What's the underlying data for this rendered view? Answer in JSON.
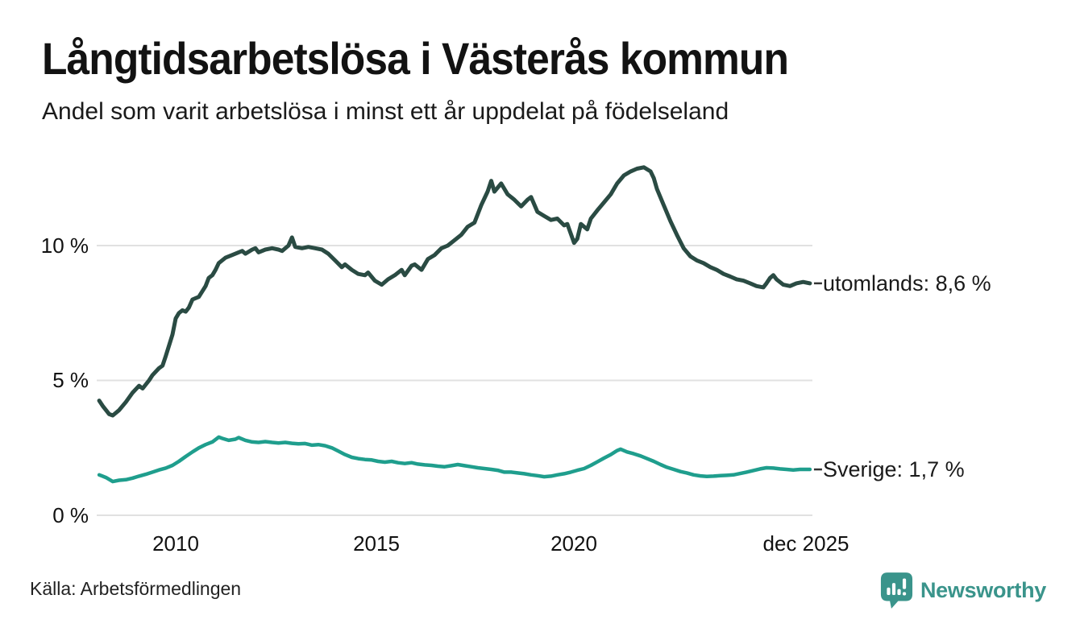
{
  "header": {
    "title": "Långtidsarbetslösa i Västerås kommun",
    "subtitle": "Andel som varit arbetslösa i minst ett år uppdelat på födelseland"
  },
  "footer": {
    "source": "Källa: Arbetsförmedlingen",
    "brand": "Newsworthy"
  },
  "colors": {
    "series_utomlands": "#2a4b43",
    "series_sverige": "#1f9e8d",
    "gridline": "#e1e1e1",
    "label_connector": "#333333",
    "brand_teal": "#3a948b",
    "text": "#111111",
    "background": "#ffffff"
  },
  "chart_data": {
    "type": "line",
    "title": "Långtidsarbetslösa i Västerås kommun",
    "subtitle": "Andel som varit arbetslösa i minst ett år uppdelat på födelseland",
    "unit": "%",
    "grid": "horizontal-only",
    "legend_position": "end-of-line-labels-right",
    "xlim": [
      2008.0,
      2025.95
    ],
    "ylim": [
      0,
      13.5
    ],
    "x_ticks": [
      {
        "label": "2010",
        "year": 2010
      },
      {
        "label": "2015",
        "year": 2015
      },
      {
        "label": "2020",
        "year": 2020
      },
      {
        "label": "dec 2025",
        "year": 2025.92
      }
    ],
    "y_ticks": [
      {
        "label": "0 %",
        "value": 0
      },
      {
        "label": "5 %",
        "value": 5
      },
      {
        "label": "10 %",
        "value": 10
      }
    ],
    "series": [
      {
        "name": "utomlands",
        "label": "utomlands: 8,6 %",
        "last_value": 8.6,
        "color": "#2a4b43",
        "stroke_width": 5,
        "points": [
          [
            2008.08,
            4.25
          ],
          [
            2008.17,
            4.05
          ],
          [
            2008.33,
            3.75
          ],
          [
            2008.42,
            3.7
          ],
          [
            2008.58,
            3.9
          ],
          [
            2008.75,
            4.2
          ],
          [
            2008.92,
            4.55
          ],
          [
            2009.08,
            4.8
          ],
          [
            2009.17,
            4.7
          ],
          [
            2009.33,
            5.0
          ],
          [
            2009.42,
            5.2
          ],
          [
            2009.58,
            5.45
          ],
          [
            2009.67,
            5.55
          ],
          [
            2009.75,
            5.9
          ],
          [
            2009.92,
            6.7
          ],
          [
            2010.0,
            7.3
          ],
          [
            2010.08,
            7.5
          ],
          [
            2010.17,
            7.6
          ],
          [
            2010.25,
            7.55
          ],
          [
            2010.33,
            7.7
          ],
          [
            2010.42,
            8.0
          ],
          [
            2010.58,
            8.1
          ],
          [
            2010.75,
            8.5
          ],
          [
            2010.83,
            8.8
          ],
          [
            2010.92,
            8.9
          ],
          [
            2011.0,
            9.1
          ],
          [
            2011.08,
            9.35
          ],
          [
            2011.25,
            9.55
          ],
          [
            2011.42,
            9.65
          ],
          [
            2011.58,
            9.75
          ],
          [
            2011.67,
            9.8
          ],
          [
            2011.75,
            9.7
          ],
          [
            2011.92,
            9.85
          ],
          [
            2012.0,
            9.9
          ],
          [
            2012.08,
            9.75
          ],
          [
            2012.25,
            9.85
          ],
          [
            2012.42,
            9.9
          ],
          [
            2012.58,
            9.85
          ],
          [
            2012.67,
            9.8
          ],
          [
            2012.83,
            10.0
          ],
          [
            2012.92,
            10.3
          ],
          [
            2013.0,
            9.95
          ],
          [
            2013.17,
            9.9
          ],
          [
            2013.33,
            9.95
          ],
          [
            2013.5,
            9.9
          ],
          [
            2013.67,
            9.85
          ],
          [
            2013.83,
            9.7
          ],
          [
            2014.0,
            9.45
          ],
          [
            2014.17,
            9.2
          ],
          [
            2014.25,
            9.3
          ],
          [
            2014.42,
            9.1
          ],
          [
            2014.58,
            8.95
          ],
          [
            2014.75,
            8.9
          ],
          [
            2014.83,
            9.0
          ],
          [
            2015.0,
            8.7
          ],
          [
            2015.17,
            8.55
          ],
          [
            2015.33,
            8.75
          ],
          [
            2015.5,
            8.9
          ],
          [
            2015.67,
            9.1
          ],
          [
            2015.75,
            8.9
          ],
          [
            2015.92,
            9.25
          ],
          [
            2016.0,
            9.3
          ],
          [
            2016.17,
            9.1
          ],
          [
            2016.33,
            9.5
          ],
          [
            2016.5,
            9.65
          ],
          [
            2016.67,
            9.9
          ],
          [
            2016.83,
            10.0
          ],
          [
            2017.0,
            10.2
          ],
          [
            2017.17,
            10.4
          ],
          [
            2017.33,
            10.7
          ],
          [
            2017.5,
            10.85
          ],
          [
            2017.67,
            11.5
          ],
          [
            2017.83,
            12.0
          ],
          [
            2017.92,
            12.4
          ],
          [
            2018.0,
            12.0
          ],
          [
            2018.17,
            12.3
          ],
          [
            2018.33,
            11.9
          ],
          [
            2018.5,
            11.7
          ],
          [
            2018.67,
            11.45
          ],
          [
            2018.83,
            11.7
          ],
          [
            2018.92,
            11.8
          ],
          [
            2019.08,
            11.25
          ],
          [
            2019.25,
            11.1
          ],
          [
            2019.42,
            10.95
          ],
          [
            2019.58,
            11.0
          ],
          [
            2019.75,
            10.75
          ],
          [
            2019.83,
            10.8
          ],
          [
            2020.0,
            10.1
          ],
          [
            2020.08,
            10.25
          ],
          [
            2020.17,
            10.8
          ],
          [
            2020.33,
            10.6
          ],
          [
            2020.42,
            11.0
          ],
          [
            2020.58,
            11.3
          ],
          [
            2020.75,
            11.6
          ],
          [
            2020.92,
            11.9
          ],
          [
            2021.08,
            12.3
          ],
          [
            2021.25,
            12.6
          ],
          [
            2021.42,
            12.75
          ],
          [
            2021.58,
            12.85
          ],
          [
            2021.75,
            12.9
          ],
          [
            2021.92,
            12.75
          ],
          [
            2022.0,
            12.5
          ],
          [
            2022.08,
            12.1
          ],
          [
            2022.25,
            11.5
          ],
          [
            2022.42,
            10.9
          ],
          [
            2022.58,
            10.4
          ],
          [
            2022.75,
            9.9
          ],
          [
            2022.92,
            9.6
          ],
          [
            2023.08,
            9.45
          ],
          [
            2023.25,
            9.35
          ],
          [
            2023.42,
            9.2
          ],
          [
            2023.58,
            9.1
          ],
          [
            2023.75,
            8.95
          ],
          [
            2023.92,
            8.85
          ],
          [
            2024.08,
            8.75
          ],
          [
            2024.25,
            8.7
          ],
          [
            2024.42,
            8.6
          ],
          [
            2024.58,
            8.5
          ],
          [
            2024.75,
            8.45
          ],
          [
            2024.83,
            8.6
          ],
          [
            2024.92,
            8.8
          ],
          [
            2025.0,
            8.9
          ],
          [
            2025.08,
            8.75
          ],
          [
            2025.25,
            8.55
          ],
          [
            2025.42,
            8.5
          ],
          [
            2025.58,
            8.6
          ],
          [
            2025.75,
            8.65
          ],
          [
            2025.92,
            8.6
          ]
        ]
      },
      {
        "name": "Sverige",
        "label": "Sverige: 1,7 %",
        "last_value": 1.7,
        "color": "#1f9e8d",
        "stroke_width": 4.5,
        "points": [
          [
            2008.08,
            1.5
          ],
          [
            2008.25,
            1.4
          ],
          [
            2008.42,
            1.25
          ],
          [
            2008.58,
            1.3
          ],
          [
            2008.75,
            1.32
          ],
          [
            2008.92,
            1.38
          ],
          [
            2009.08,
            1.45
          ],
          [
            2009.25,
            1.52
          ],
          [
            2009.42,
            1.6
          ],
          [
            2009.58,
            1.68
          ],
          [
            2009.75,
            1.75
          ],
          [
            2009.92,
            1.85
          ],
          [
            2010.08,
            2.0
          ],
          [
            2010.25,
            2.18
          ],
          [
            2010.42,
            2.35
          ],
          [
            2010.58,
            2.5
          ],
          [
            2010.75,
            2.62
          ],
          [
            2010.92,
            2.72
          ],
          [
            2011.08,
            2.9
          ],
          [
            2011.17,
            2.85
          ],
          [
            2011.33,
            2.78
          ],
          [
            2011.5,
            2.82
          ],
          [
            2011.58,
            2.88
          ],
          [
            2011.75,
            2.78
          ],
          [
            2011.92,
            2.72
          ],
          [
            2012.08,
            2.7
          ],
          [
            2012.25,
            2.73
          ],
          [
            2012.42,
            2.7
          ],
          [
            2012.58,
            2.68
          ],
          [
            2012.75,
            2.7
          ],
          [
            2012.92,
            2.67
          ],
          [
            2013.08,
            2.65
          ],
          [
            2013.25,
            2.66
          ],
          [
            2013.42,
            2.6
          ],
          [
            2013.58,
            2.62
          ],
          [
            2013.75,
            2.58
          ],
          [
            2013.92,
            2.5
          ],
          [
            2014.08,
            2.38
          ],
          [
            2014.25,
            2.25
          ],
          [
            2014.42,
            2.15
          ],
          [
            2014.58,
            2.1
          ],
          [
            2014.75,
            2.07
          ],
          [
            2014.92,
            2.05
          ],
          [
            2015.08,
            2.0
          ],
          [
            2015.25,
            1.97
          ],
          [
            2015.42,
            2.0
          ],
          [
            2015.58,
            1.95
          ],
          [
            2015.75,
            1.92
          ],
          [
            2015.92,
            1.95
          ],
          [
            2016.08,
            1.9
          ],
          [
            2016.25,
            1.87
          ],
          [
            2016.42,
            1.85
          ],
          [
            2016.58,
            1.82
          ],
          [
            2016.75,
            1.8
          ],
          [
            2016.92,
            1.84
          ],
          [
            2017.08,
            1.88
          ],
          [
            2017.25,
            1.84
          ],
          [
            2017.42,
            1.8
          ],
          [
            2017.58,
            1.76
          ],
          [
            2017.75,
            1.73
          ],
          [
            2017.92,
            1.7
          ],
          [
            2018.08,
            1.67
          ],
          [
            2018.25,
            1.6
          ],
          [
            2018.42,
            1.6
          ],
          [
            2018.58,
            1.57
          ],
          [
            2018.75,
            1.54
          ],
          [
            2018.92,
            1.5
          ],
          [
            2019.08,
            1.47
          ],
          [
            2019.25,
            1.43
          ],
          [
            2019.42,
            1.45
          ],
          [
            2019.58,
            1.5
          ],
          [
            2019.75,
            1.54
          ],
          [
            2019.92,
            1.6
          ],
          [
            2020.08,
            1.67
          ],
          [
            2020.25,
            1.73
          ],
          [
            2020.42,
            1.85
          ],
          [
            2020.58,
            1.98
          ],
          [
            2020.75,
            2.12
          ],
          [
            2020.92,
            2.25
          ],
          [
            2021.08,
            2.4
          ],
          [
            2021.17,
            2.45
          ],
          [
            2021.33,
            2.35
          ],
          [
            2021.5,
            2.28
          ],
          [
            2021.67,
            2.2
          ],
          [
            2021.83,
            2.1
          ],
          [
            2022.0,
            2.0
          ],
          [
            2022.17,
            1.88
          ],
          [
            2022.33,
            1.78
          ],
          [
            2022.5,
            1.7
          ],
          [
            2022.67,
            1.62
          ],
          [
            2022.83,
            1.57
          ],
          [
            2023.0,
            1.5
          ],
          [
            2023.17,
            1.46
          ],
          [
            2023.33,
            1.44
          ],
          [
            2023.5,
            1.45
          ],
          [
            2023.67,
            1.47
          ],
          [
            2023.83,
            1.48
          ],
          [
            2024.0,
            1.5
          ],
          [
            2024.17,
            1.55
          ],
          [
            2024.33,
            1.6
          ],
          [
            2024.5,
            1.66
          ],
          [
            2024.67,
            1.72
          ],
          [
            2024.83,
            1.76
          ],
          [
            2025.0,
            1.75
          ],
          [
            2025.17,
            1.72
          ],
          [
            2025.33,
            1.7
          ],
          [
            2025.5,
            1.68
          ],
          [
            2025.67,
            1.7
          ],
          [
            2025.92,
            1.7
          ]
        ]
      }
    ]
  }
}
